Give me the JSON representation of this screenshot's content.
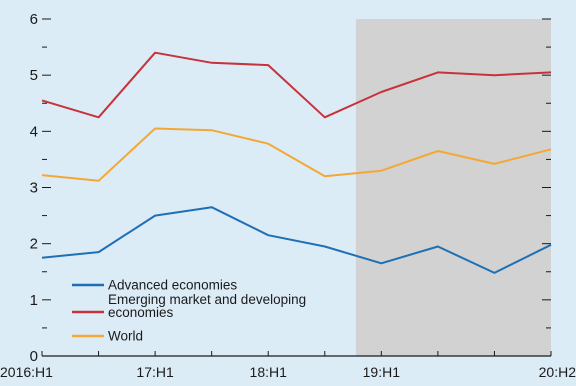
{
  "chart_data": {
    "type": "line",
    "title": "",
    "xlabel": "",
    "ylabel": "",
    "ylim": [
      0,
      6
    ],
    "yticks": [
      0,
      1,
      2,
      3,
      4,
      5,
      6
    ],
    "categories": [
      "2016:H1",
      "16:H2",
      "17:H1",
      "17:H2",
      "18:H1",
      "18:H2",
      "19:H1",
      "19:H2",
      "20:H1",
      "20:H2"
    ],
    "x_tick_labels": [
      {
        "index": 0,
        "label": "2016:H1"
      },
      {
        "index": 2,
        "label": "17:H1"
      },
      {
        "index": 4,
        "label": "18:H1"
      },
      {
        "index": 6,
        "label": "19:H1"
      },
      {
        "index": 9,
        "label": "20:H2"
      }
    ],
    "shaded_region": {
      "from": "18:H2 (mid)",
      "to": "20:H2",
      "from_index": 5.55,
      "to_index": 9,
      "color": "#d2d2d2"
    },
    "grid": false,
    "legend_position": "bottom-left",
    "series": [
      {
        "name": "Advanced economies",
        "color": "#1f6fb4",
        "values": [
          1.75,
          1.85,
          2.5,
          2.65,
          2.15,
          1.95,
          1.65,
          1.95,
          1.48,
          1.98
        ]
      },
      {
        "name": "Emerging market and developing economies",
        "color": "#c8323a",
        "values": [
          4.55,
          4.25,
          5.4,
          5.22,
          5.18,
          4.25,
          4.7,
          5.05,
          5.0,
          5.05
        ]
      },
      {
        "name": "World",
        "color": "#f4a834",
        "values": [
          3.22,
          3.12,
          4.05,
          4.02,
          3.78,
          3.2,
          3.3,
          3.65,
          3.42,
          3.68
        ]
      }
    ]
  }
}
